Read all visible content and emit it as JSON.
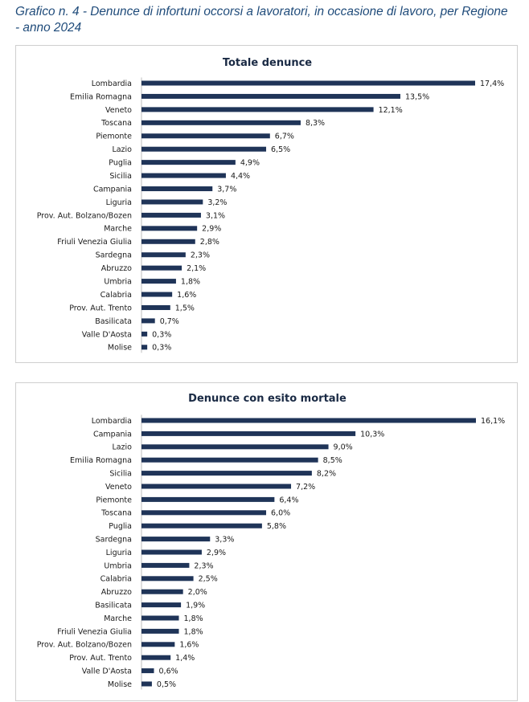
{
  "header": {
    "line1": "Grafico n. 4 - Denunce di infortuni occorsi a lavoratori, in occasione di lavoro, per Regione",
    "line2": "- anno 2024"
  },
  "colors": {
    "bar": "#1f3458",
    "heading": "#1f4b7a"
  },
  "chart_data": [
    {
      "type": "bar",
      "orientation": "horizontal",
      "title": "Totale denunce",
      "xlabel": "",
      "ylabel": "",
      "xlim": [
        0,
        17.4
      ],
      "grid": false,
      "categories": [
        "Lombardia",
        "Emilia Romagna",
        "Veneto",
        "Toscana",
        "Piemonte",
        "Lazio",
        "Puglia",
        "Sicilia",
        "Campania",
        "Liguria",
        "Prov. Aut. Bolzano/Bozen",
        "Marche",
        "Friuli Venezia Giulia",
        "Sardegna",
        "Abruzzo",
        "Umbria",
        "Calabria",
        "Prov. Aut. Trento",
        "Basilicata",
        "Valle D'Aosta",
        "Molise"
      ],
      "values": [
        17.4,
        13.5,
        12.1,
        8.3,
        6.7,
        6.5,
        4.9,
        4.4,
        3.7,
        3.2,
        3.1,
        2.9,
        2.8,
        2.3,
        2.1,
        1.8,
        1.6,
        1.5,
        0.7,
        0.3,
        0.3
      ],
      "labels": [
        "17,4%",
        "13,5%",
        "12,1%",
        "8,3%",
        "6,7%",
        "6,5%",
        "4,9%",
        "4,4%",
        "3,7%",
        "3,2%",
        "3,1%",
        "2,9%",
        "2,8%",
        "2,3%",
        "2,1%",
        "1,8%",
        "1,6%",
        "1,5%",
        "0,7%",
        "0,3%",
        "0,3%"
      ]
    },
    {
      "type": "bar",
      "orientation": "horizontal",
      "title": "Denunce con esito mortale",
      "xlabel": "",
      "ylabel": "",
      "xlim": [
        0,
        16.1
      ],
      "grid": false,
      "categories": [
        "Lombardia",
        "Campania",
        "Lazio",
        "Emilia Romagna",
        "Sicilia",
        "Veneto",
        "Piemonte",
        "Toscana",
        "Puglia",
        "Sardegna",
        "Liguria",
        "Umbria",
        "Calabria",
        "Abruzzo",
        "Basilicata",
        "Marche",
        "Friuli Venezia Giulia",
        "Prov. Aut. Bolzano/Bozen",
        "Prov. Aut. Trento",
        "Valle D'Aosta",
        "Molise"
      ],
      "values": [
        16.1,
        10.3,
        9.0,
        8.5,
        8.2,
        7.2,
        6.4,
        6.0,
        5.8,
        3.3,
        2.9,
        2.3,
        2.5,
        2.0,
        1.9,
        1.8,
        1.8,
        1.6,
        1.4,
        0.6,
        0.5
      ],
      "labels": [
        "16,1%",
        "10,3%",
        "9,0%",
        "8,5%",
        "8,2%",
        "7,2%",
        "6,4%",
        "6,0%",
        "5,8%",
        "3,3%",
        "2,9%",
        "2,3%",
        "2,5%",
        "2,0%",
        "1,9%",
        "1,8%",
        "1,8%",
        "1,6%",
        "1,4%",
        "0,6%",
        "0,5%"
      ]
    }
  ]
}
